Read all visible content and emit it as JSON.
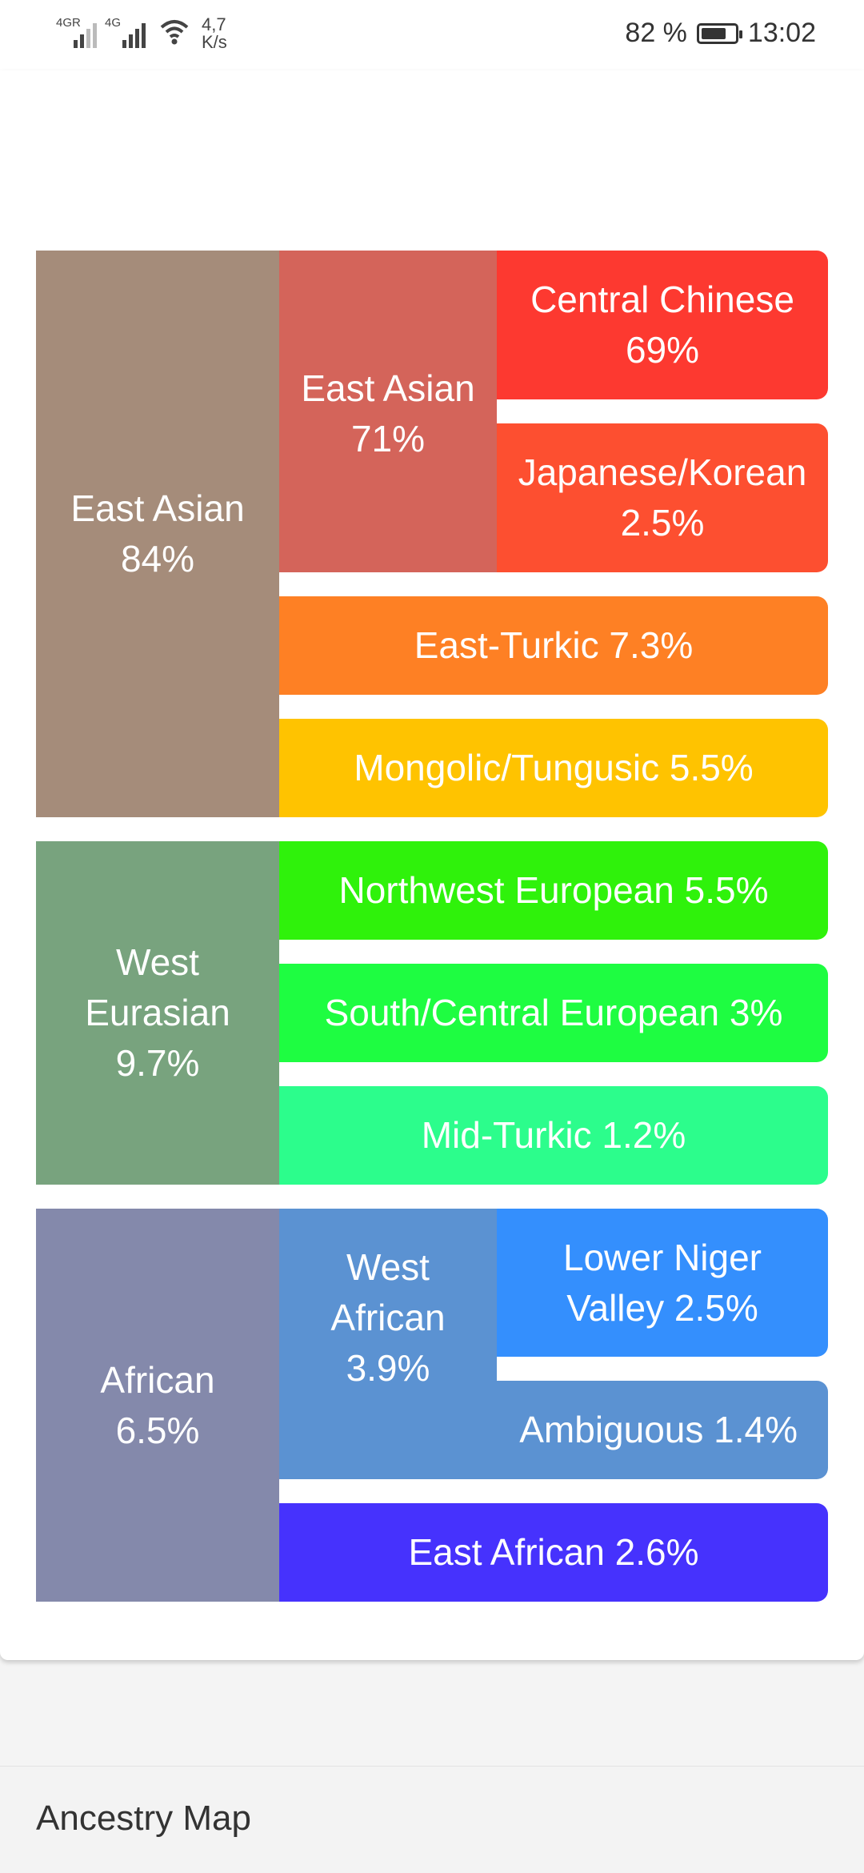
{
  "status_bar": {
    "network1": "4G",
    "network1_suffix": "R",
    "network2": "4G",
    "speed_value": "4,7",
    "speed_unit": "K/s",
    "battery_percent": "82 %",
    "battery_level": 0.82,
    "time": "13:02",
    "icons": [
      "signal-icon",
      "signal-icon",
      "wifi-icon",
      "battery-icon"
    ]
  },
  "ancestry": {
    "east_asian": {
      "label": "East Asian",
      "value": "84%",
      "color": "#a58c7a",
      "sub": {
        "label": "East Asian",
        "value": "71%",
        "color": "#d4645a",
        "central_chinese": {
          "label": "Central Chinese",
          "value": "69%",
          "color": "#fd3930"
        },
        "japanese_korean": {
          "label": "Japanese/Korean",
          "value": "2.5%",
          "color": "#fd4f30"
        }
      },
      "east_turkic": {
        "text": "East-Turkic 7.3%",
        "color": "#fe8024"
      },
      "mongolic": {
        "text": "Mongolic/Tungusic 5.5%",
        "color": "#ffc300"
      }
    },
    "west_eurasian": {
      "label1": "West",
      "label2": "Eurasian",
      "value": "9.7%",
      "color": "#78a37e",
      "northwest_european": {
        "text": "Northwest European 5.5%",
        "color": "#2ff20b"
      },
      "south_central_european": {
        "text": "South/Central European 3%",
        "color": "#1efd41"
      },
      "mid_turkic": {
        "text": "Mid-Turkic 1.2%",
        "color": "#2cfd8c"
      }
    },
    "african": {
      "label": "African",
      "value": "6.5%",
      "color": "#8489ab",
      "west_african": {
        "label1": "West",
        "label2": "African",
        "value": "3.9%",
        "color": "#5b92d2",
        "lower_niger": {
          "label1": "Lower Niger",
          "label2": "Valley 2.5%",
          "color": "#348ffd"
        },
        "ambiguous": {
          "text": "Ambiguous 1.4%",
          "color": "#5b92d2"
        }
      },
      "east_african": {
        "text": "East African 2.6%",
        "color": "#4632fd"
      }
    }
  },
  "bottom_bar": {
    "title": "Ancestry Map"
  }
}
